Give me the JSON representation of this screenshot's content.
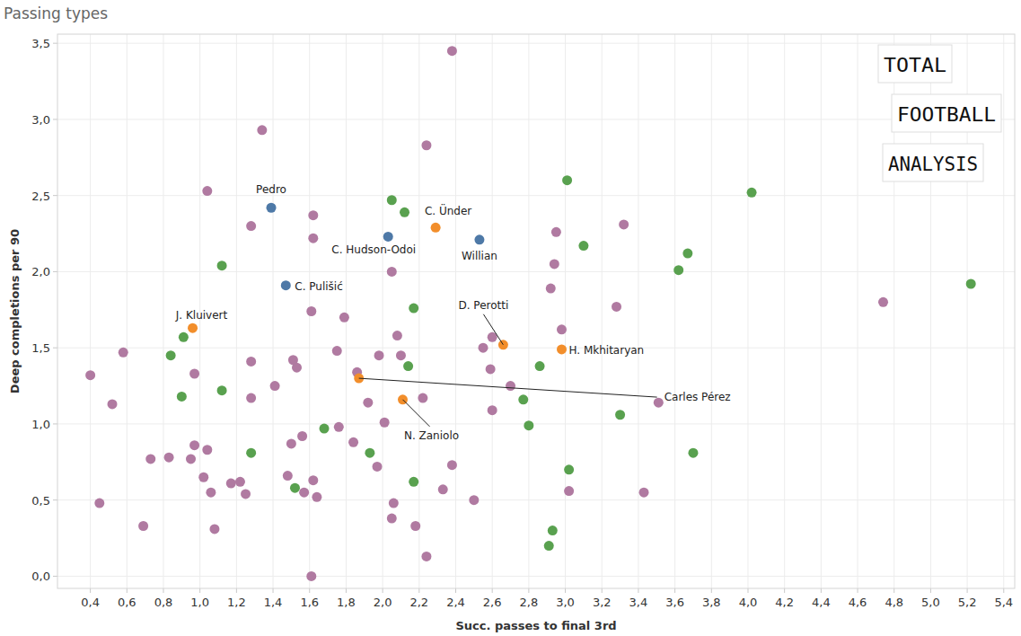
{
  "chart_data": {
    "type": "scatter",
    "title": "Passing types",
    "x_label": "Succ. passes to final 3rd",
    "y_label": "Deep completions per 90",
    "xlim": [
      0.22,
      5.46
    ],
    "ylim": [
      -0.08,
      3.56
    ],
    "xticks": [
      {
        "value": 0.4,
        "label": "0,4"
      },
      {
        "value": 0.6,
        "label": "0,6"
      },
      {
        "value": 0.8,
        "label": "0,8"
      },
      {
        "value": 1.0,
        "label": "1,0"
      },
      {
        "value": 1.2,
        "label": "1,2"
      },
      {
        "value": 1.4,
        "label": "1,4"
      },
      {
        "value": 1.6,
        "label": "1,6"
      },
      {
        "value": 1.8,
        "label": "1,8"
      },
      {
        "value": 2.0,
        "label": "2,0"
      },
      {
        "value": 2.2,
        "label": "2,2"
      },
      {
        "value": 2.4,
        "label": "2,4"
      },
      {
        "value": 2.6,
        "label": "2,6"
      },
      {
        "value": 2.8,
        "label": "2,8"
      },
      {
        "value": 3.0,
        "label": "3,0"
      },
      {
        "value": 3.2,
        "label": "3,2"
      },
      {
        "value": 3.4,
        "label": "3,4"
      },
      {
        "value": 3.6,
        "label": "3,6"
      },
      {
        "value": 3.8,
        "label": "3,8"
      },
      {
        "value": 4.0,
        "label": "4,0"
      },
      {
        "value": 4.2,
        "label": "4,2"
      },
      {
        "value": 4.4,
        "label": "4,4"
      },
      {
        "value": 4.6,
        "label": "4,6"
      },
      {
        "value": 4.8,
        "label": "4,8"
      },
      {
        "value": 5.0,
        "label": "5,0"
      },
      {
        "value": 5.2,
        "label": "5,2"
      },
      {
        "value": 5.4,
        "label": "5,4"
      }
    ],
    "yticks": [
      {
        "value": 0.0,
        "label": "0,0"
      },
      {
        "value": 0.5,
        "label": "0,5"
      },
      {
        "value": 1.0,
        "label": "1,0"
      },
      {
        "value": 1.5,
        "label": "1,5"
      },
      {
        "value": 2.0,
        "label": "2,0"
      },
      {
        "value": 2.5,
        "label": "2,5"
      },
      {
        "value": 3.0,
        "label": "3,0"
      },
      {
        "value": 3.5,
        "label": "3,5"
      }
    ],
    "grid": true,
    "marker": "circle",
    "series": [
      {
        "color": "#b07aa1",
        "x": [
          2.38,
          1.34,
          2.24,
          1.04,
          1.62,
          1.28,
          1.62,
          3.32,
          2.95,
          2.94,
          2.05,
          2.92,
          1.61,
          4.74,
          3.28,
          1.79,
          0.58,
          2.6,
          2.98,
          2.08,
          1.75,
          2.55,
          0.4,
          0.52,
          0.97,
          1.28,
          1.51,
          1.53,
          1.98,
          2.1,
          1.86,
          2.59,
          2.7,
          1.41,
          1.28,
          1.92,
          2.22,
          3.51,
          2.6,
          2.01,
          1.76,
          1.5,
          1.56,
          1.84,
          0.97,
          1.04,
          0.73,
          0.83,
          0.95,
          1.02,
          1.06,
          1.17,
          1.22,
          1.25,
          1.48,
          1.62,
          1.57,
          1.64,
          1.97,
          2.38,
          2.33,
          2.06,
          2.5,
          3.02,
          3.43,
          0.45,
          0.69,
          1.08,
          2.05,
          2.18,
          2.24,
          1.61
        ],
        "values": [
          3.45,
          2.93,
          2.83,
          2.53,
          2.37,
          2.3,
          2.22,
          2.31,
          2.26,
          2.05,
          2.0,
          1.89,
          1.74,
          1.8,
          1.77,
          1.7,
          1.47,
          1.57,
          1.62,
          1.58,
          1.48,
          1.5,
          1.32,
          1.13,
          1.33,
          1.41,
          1.42,
          1.37,
          1.45,
          1.45,
          1.34,
          1.36,
          1.25,
          1.25,
          1.17,
          1.14,
          1.17,
          1.14,
          1.09,
          1.01,
          0.98,
          0.87,
          0.92,
          0.88,
          0.86,
          0.83,
          0.77,
          0.78,
          0.77,
          0.65,
          0.55,
          0.61,
          0.62,
          0.54,
          0.66,
          0.63,
          0.55,
          0.52,
          0.72,
          0.73,
          0.57,
          0.48,
          0.5,
          0.56,
          0.55,
          0.48,
          0.33,
          0.31,
          0.38,
          0.33,
          0.13,
          0.0
        ]
      },
      {
        "color": "#59a14f",
        "x": [
          2.05,
          2.12,
          1.12,
          3.01,
          3.1,
          4.02,
          3.67,
          3.62,
          5.22,
          2.17,
          0.91,
          0.84,
          0.9,
          1.12,
          2.14,
          2.86,
          2.77,
          2.8,
          1.28,
          1.68,
          1.93,
          1.52,
          2.17,
          3.3,
          3.02,
          3.7,
          2.93,
          2.91
        ],
        "values": [
          2.47,
          2.39,
          2.04,
          2.6,
          2.17,
          2.52,
          2.12,
          2.01,
          1.92,
          1.76,
          1.57,
          1.45,
          1.18,
          1.22,
          1.38,
          1.38,
          1.16,
          0.99,
          0.81,
          0.97,
          0.81,
          0.58,
          0.62,
          1.06,
          0.7,
          0.81,
          0.3,
          0.2
        ]
      },
      {
        "color": "#4e79a7",
        "x": [
          1.39,
          2.03,
          2.53,
          1.47
        ],
        "values": [
          2.42,
          2.23,
          2.21,
          1.91
        ],
        "labels": [
          "Pedro",
          "C. Hudson-Odoi",
          "Willian",
          "C. Pulišić"
        ]
      },
      {
        "color": "#f28e2b",
        "x": [
          2.29,
          0.96,
          2.66,
          2.98,
          1.87,
          2.11
        ],
        "values": [
          2.29,
          1.63,
          1.52,
          1.49,
          1.3,
          1.16
        ],
        "labels": [
          "C. Ünder",
          "J. Kluivert",
          "D. Perotti",
          "H. Mkhitaryan",
          "Carles Pérez",
          "N. Zaniolo"
        ]
      }
    ],
    "watermark": [
      "TOTAL",
      "FOOTBALL",
      "ANALYSIS"
    ]
  }
}
